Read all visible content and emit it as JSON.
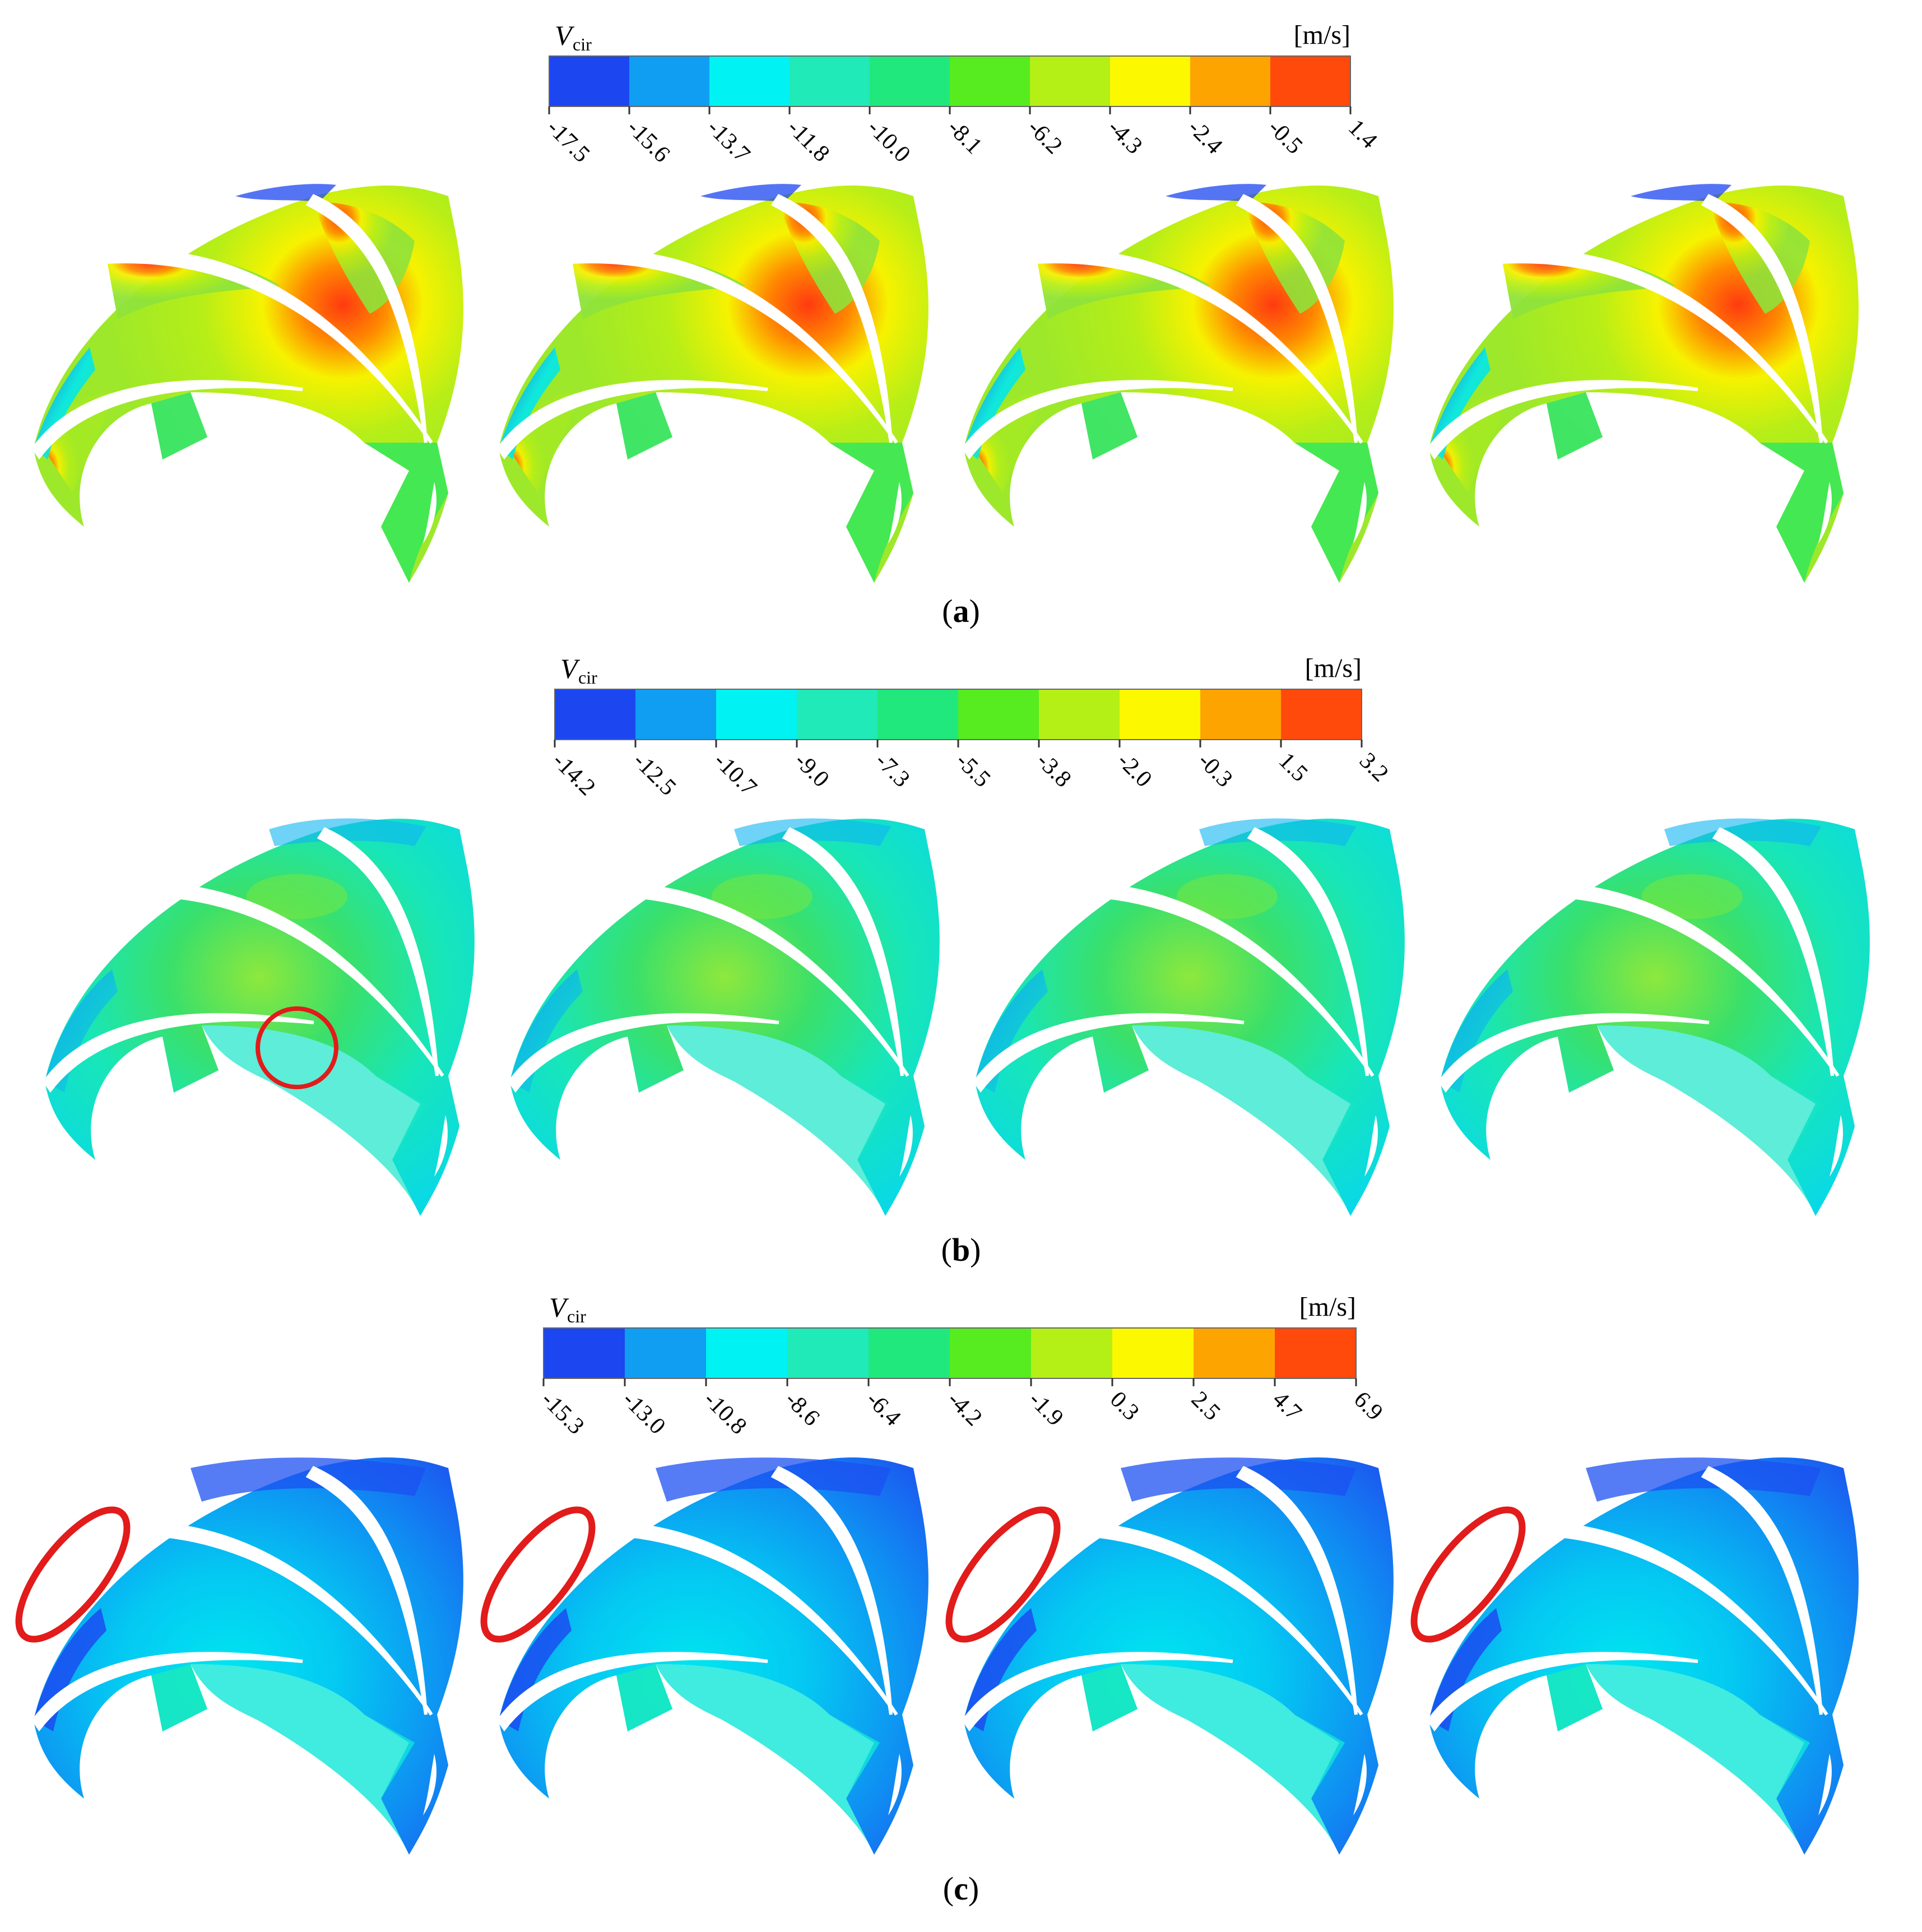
{
  "figure": {
    "panels": [
      {
        "id": "a",
        "caption_letter": "a",
        "colorbar": {
          "variable": "V",
          "variable_sub": "cir",
          "unit": "[m/s]",
          "ticks": [
            "-17.5",
            "-15.6",
            "-13.7",
            "-11.8",
            "-10.0",
            "-8.1",
            "-6.2",
            "-4.3",
            "-2.4",
            "-0.5",
            "1.4"
          ]
        },
        "regime": "warm",
        "marker": "none"
      },
      {
        "id": "b",
        "caption_letter": "b",
        "colorbar": {
          "variable": "V",
          "variable_sub": "cir",
          "unit": "[m/s]",
          "ticks": [
            "-14.2",
            "-12.5",
            "-10.7",
            "-9.0",
            "-7.3",
            "-5.5",
            "-3.8",
            "-2.0",
            "-0.3",
            "1.5",
            "3.2"
          ]
        },
        "regime": "mid",
        "marker": "circle-first"
      },
      {
        "id": "c",
        "caption_letter": "c",
        "colorbar": {
          "variable": "V",
          "variable_sub": "cir",
          "unit": "[m/s]",
          "ticks": [
            "-15.3",
            "-13.0",
            "-10.8",
            "-8.6",
            "-6.4",
            "-4.2",
            "-1.9",
            "0.3",
            "2.5",
            "4.7",
            "6.9"
          ]
        },
        "regime": "cool",
        "marker": "ellipse-all"
      }
    ],
    "colorbar_colors": [
      "#1c46f0",
      "#0f9ef2",
      "#00f2f2",
      "#20eab8",
      "#20e87c",
      "#56ec20",
      "#b4f016",
      "#fcf800",
      "#fea400",
      "#ff4a0c"
    ],
    "annotation_color": "#e21b1b"
  }
}
